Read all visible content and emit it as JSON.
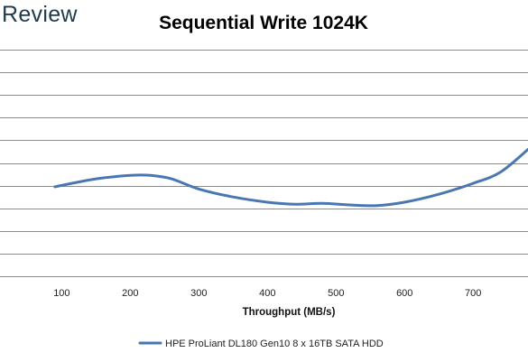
{
  "brand": {
    "text": "Review"
  },
  "chart_data": {
    "type": "line",
    "title": "Sequential Write 1024K",
    "xlabel": "Throughput (MB/s)",
    "ylabel": "",
    "xlim": [
      10,
      780
    ],
    "ylim": [
      0,
      11
    ],
    "x_ticks": [
      100,
      200,
      300,
      400,
      500,
      600,
      700
    ],
    "grid": "horizontal",
    "legend_position": "bottom",
    "series": [
      {
        "name": "HPE ProLiant DL180 Gen10 8 x 16TB SATA HDD",
        "color": "#4a76b3",
        "x": [
          90,
          150,
          200,
          230,
          260,
          300,
          350,
          400,
          440,
          480,
          520,
          560,
          600,
          650,
          700,
          740,
          780
        ],
        "y": [
          3.95,
          4.3,
          4.45,
          4.45,
          4.3,
          3.85,
          3.5,
          3.27,
          3.18,
          3.22,
          3.15,
          3.12,
          3.27,
          3.62,
          4.1,
          4.6,
          5.6
        ]
      }
    ]
  }
}
